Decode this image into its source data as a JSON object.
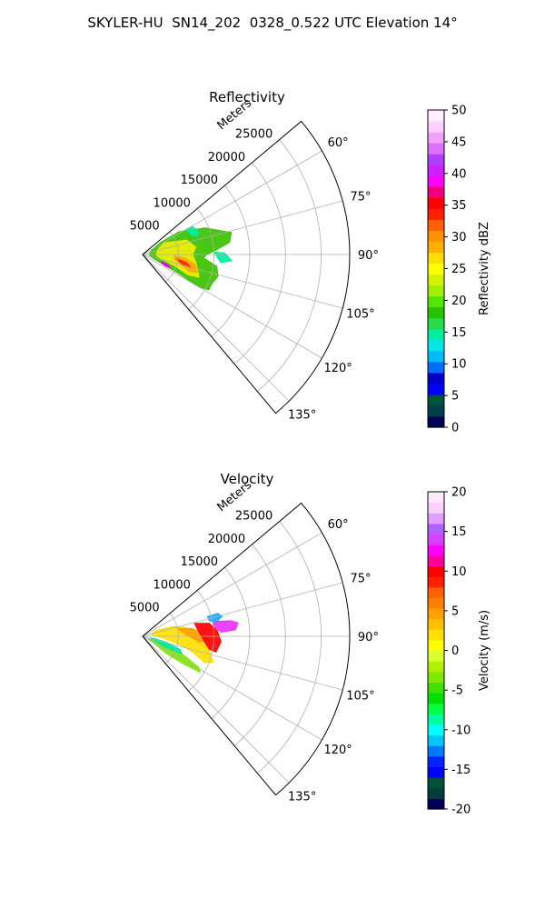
{
  "figure": {
    "title": "SKYLER-HU  SN14_202  0328_0.522 UTC Elevation 14°"
  },
  "chart_data": [
    {
      "type": "heatmap",
      "title": "Reflectivity",
      "radial_label": "Meters",
      "r_ticks": [
        "5000",
        "10000",
        "15000",
        "20000",
        "25000"
      ],
      "r_lim": [
        0,
        29000
      ],
      "theta_ticks": [
        "60°",
        "75°",
        "90°",
        "105°",
        "120°",
        "135°"
      ],
      "theta_lim_deg": [
        50,
        140
      ],
      "grid": true,
      "colorbar": {
        "label": "Reflectivity dBZ",
        "ticks": [
          "0",
          "5",
          "10",
          "15",
          "20",
          "25",
          "30",
          "35",
          "40",
          "45",
          "50"
        ],
        "range": [
          0,
          50
        ],
        "colormap": "pyart_NWSRef-like"
      },
      "regions": [
        {
          "color": "#39c200",
          "pts": [
            [
              3000,
              56
            ],
            [
              6000,
              58
            ],
            [
              9500,
              67
            ],
            [
              11800,
              74
            ],
            [
              12800,
              76
            ],
            [
              12300,
              82
            ],
            [
              10500,
              86
            ],
            [
              9000,
              90
            ],
            [
              8500,
              93
            ],
            [
              10500,
              99
            ],
            [
              11000,
              106
            ],
            [
              10500,
              113
            ],
            [
              10500,
              118
            ],
            [
              9000,
              120
            ],
            [
              6000,
              118
            ],
            [
              3000,
              115
            ],
            [
              1500,
              110
            ],
            [
              1000,
              100
            ],
            [
              1000,
              80
            ],
            [
              1500,
              62
            ]
          ]
        },
        {
          "color": "#f0ee00",
          "pts": [
            [
              3500,
              62
            ],
            [
              6500,
              72
            ],
            [
              7500,
              82
            ],
            [
              7000,
              90
            ],
            [
              7500,
              98
            ],
            [
              8000,
              106
            ],
            [
              8500,
              112
            ],
            [
              7000,
              114
            ],
            [
              5000,
              110
            ],
            [
              3000,
              104
            ],
            [
              2000,
              96
            ],
            [
              2000,
              82
            ],
            [
              2500,
              68
            ]
          ]
        },
        {
          "color": "#ffa400",
          "pts": [
            [
              4500,
              92
            ],
            [
              6000,
              95
            ],
            [
              7500,
              101
            ],
            [
              8000,
              108
            ],
            [
              7000,
              110
            ],
            [
              5500,
              104
            ],
            [
              4500,
              98
            ]
          ]
        },
        {
          "color": "#ff2a00",
          "pts": [
            [
              4800,
              97
            ],
            [
              6200,
              100
            ],
            [
              7000,
              105
            ],
            [
              6000,
              105
            ],
            [
              5200,
              101
            ]
          ]
        },
        {
          "color": "#e600e8",
          "pts": [
            [
              2800,
              111
            ],
            [
              3800,
              112
            ],
            [
              4300,
              116
            ],
            [
              3600,
              117
            ],
            [
              2900,
              114
            ]
          ]
        },
        {
          "color": "#00ee9e",
          "pts": [
            [
              7000,
              60
            ],
            [
              8000,
              61
            ],
            [
              8500,
              68
            ],
            [
              8000,
              72
            ],
            [
              7300,
              68
            ]
          ]
        },
        {
          "color": "#00ee9e",
          "pts": [
            [
              10000,
              88
            ],
            [
              11500,
              89
            ],
            [
              12500,
              94
            ],
            [
              11000,
              96
            ]
          ]
        }
      ]
    },
    {
      "type": "heatmap",
      "title": "Velocity",
      "radial_label": "Meters",
      "r_ticks": [
        "5000",
        "10000",
        "15000",
        "20000",
        "25000"
      ],
      "r_lim": [
        0,
        29000
      ],
      "theta_ticks": [
        "60°",
        "75°",
        "90°",
        "105°",
        "120°",
        "135°"
      ],
      "theta_lim_deg": [
        50,
        140
      ],
      "grid": true,
      "colorbar": {
        "label": "Velocity (m/s)",
        "ticks": [
          "-20",
          "-15",
          "-10",
          "-5",
          "0",
          "5",
          "10",
          "15",
          "20"
        ],
        "range": [
          -20,
          20
        ],
        "colormap": "pyart_NWSVel-like"
      },
      "regions": [
        {
          "color": "#7ee800",
          "pts": [
            [
              1500,
              108
            ],
            [
              4000,
              112
            ],
            [
              6500,
              115
            ],
            [
              9000,
              119
            ],
            [
              9500,
              122
            ],
            [
              7000,
              124
            ],
            [
              4000,
              126
            ],
            [
              2000,
              122
            ],
            [
              1000,
              115
            ]
          ]
        },
        {
          "color": "#00e89a",
          "pts": [
            [
              1500,
              100
            ],
            [
              3500,
              104
            ],
            [
              5500,
              109
            ],
            [
              6000,
              114
            ],
            [
              3500,
              116
            ],
            [
              1800,
              110
            ],
            [
              1000,
              104
            ]
          ]
        },
        {
          "color": "#ffe100",
          "pts": [
            [
              2000,
              66
            ],
            [
              4500,
              72
            ],
            [
              6000,
              78
            ],
            [
              7500,
              86
            ],
            [
              8500,
              94
            ],
            [
              9500,
              102
            ],
            [
              10500,
              110
            ],
            [
              9500,
              113
            ],
            [
              7500,
              108
            ],
            [
              5500,
              103
            ],
            [
              3500,
              98
            ],
            [
              2000,
              90
            ],
            [
              1200,
              78
            ]
          ]
        },
        {
          "color": "#ffa000",
          "pts": [
            [
              5000,
              77
            ],
            [
              7000,
              81
            ],
            [
              8500,
              88
            ],
            [
              9000,
              94
            ],
            [
              8000,
              96
            ],
            [
              6500,
              90
            ],
            [
              5500,
              84
            ]
          ]
        },
        {
          "color": "#ff0000",
          "pts": [
            [
              7500,
              76
            ],
            [
              9500,
              79
            ],
            [
              10500,
              86
            ],
            [
              11000,
              94
            ],
            [
              10500,
              102
            ],
            [
              9500,
              101
            ],
            [
              8500,
              93
            ],
            [
              7800,
              84
            ]
          ]
        },
        {
          "color": "#ea32ff",
          "pts": [
            [
              10000,
              78
            ],
            [
              12500,
              80
            ],
            [
              13500,
              82
            ],
            [
              13000,
              86
            ],
            [
              11000,
              87
            ],
            [
              10200,
              83
            ]
          ]
        },
        {
          "color": "#1aa8ff",
          "pts": [
            [
              9500,
              73
            ],
            [
              11000,
              73
            ],
            [
              11500,
              76
            ],
            [
              10500,
              79
            ],
            [
              9600,
              77
            ]
          ]
        }
      ]
    }
  ]
}
